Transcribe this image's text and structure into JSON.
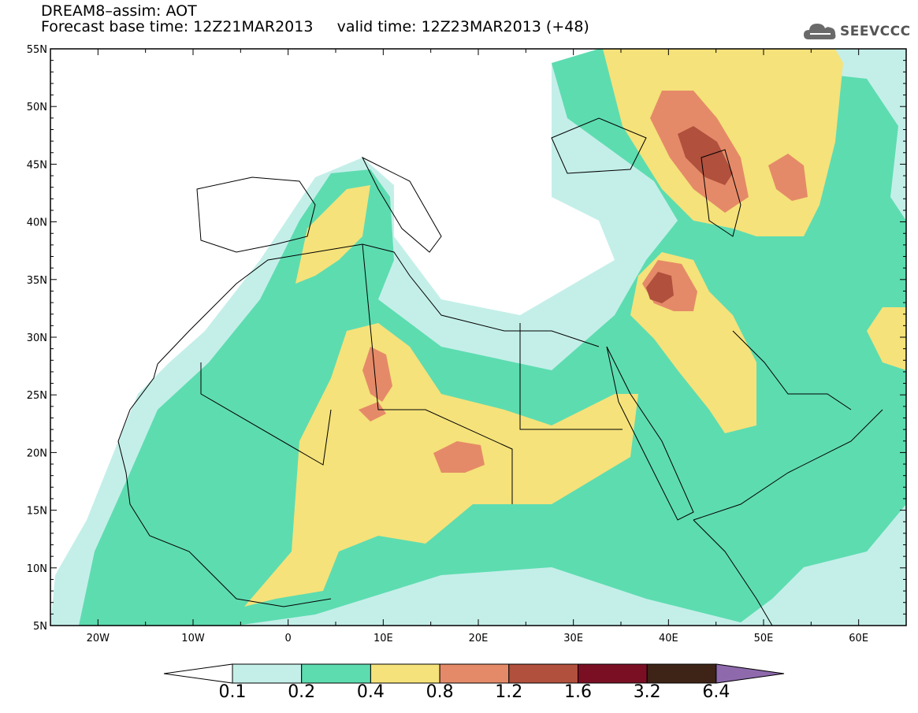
{
  "header": {
    "title": "DREAM8–assim: AOT",
    "base_time_label": "Forecast base time: 12Z21MAR2013",
    "valid_time_label": "valid time: 12Z23MAR2013 (+48)"
  },
  "logo": {
    "icon": "cloud-icon",
    "text": "SEEVCCC"
  },
  "map": {
    "lon_range": [
      -25,
      65
    ],
    "lat_range": [
      5,
      55
    ],
    "x_ticks": [
      "20W",
      "10W",
      "0",
      "10E",
      "20E",
      "30E",
      "40E",
      "50E",
      "60E"
    ],
    "y_ticks": [
      "55N",
      "50N",
      "45N",
      "40N",
      "35N",
      "30N",
      "25N",
      "20N",
      "15N",
      "10N",
      "5N"
    ]
  },
  "colorbar": {
    "levels": [
      "0.1",
      "0.2",
      "0.4",
      "0.8",
      "1.2",
      "1.6",
      "3.2",
      "6.4"
    ],
    "colors": [
      "#ffffff",
      "#c4efe9",
      "#5ddcb0",
      "#f5e27a",
      "#e58a68",
      "#b0503d",
      "#7a0f24",
      "#3d2416",
      "#8e6aad"
    ]
  }
}
